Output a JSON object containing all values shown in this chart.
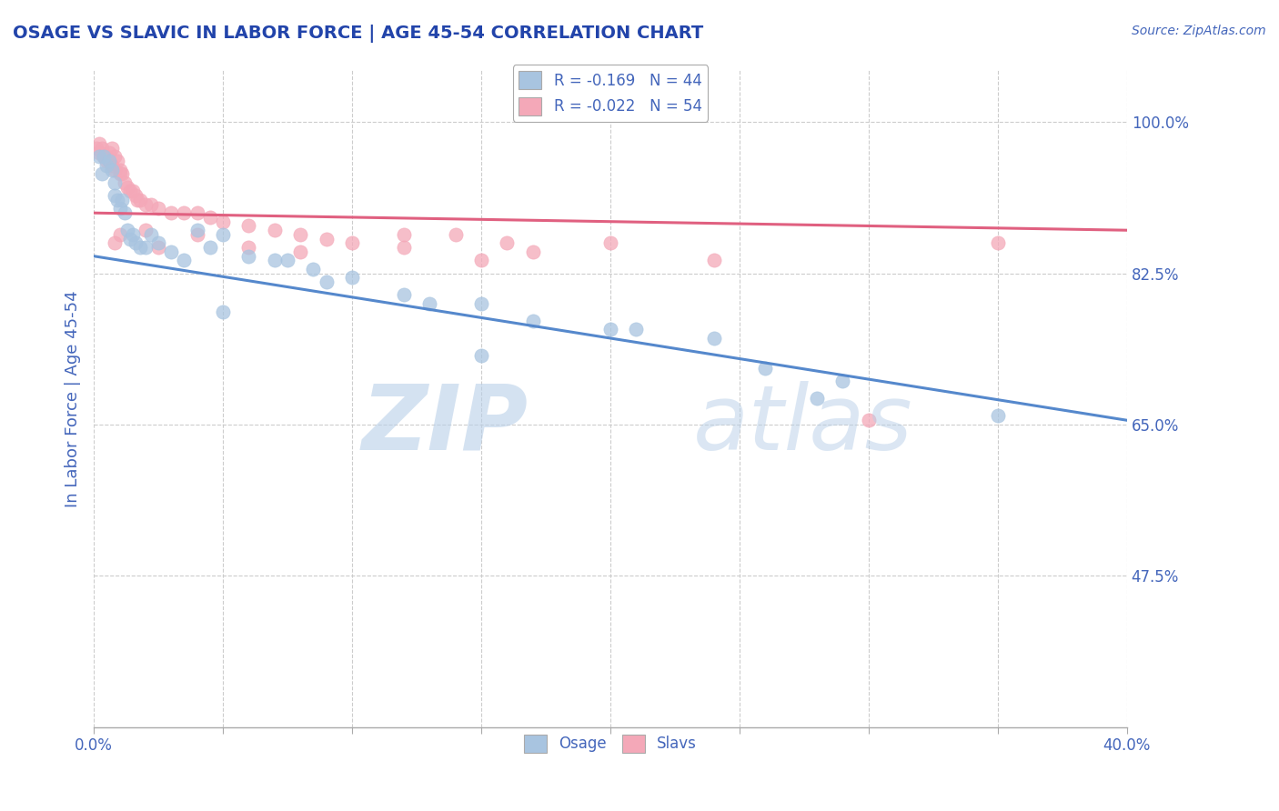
{
  "title": "OSAGE VS SLAVIC IN LABOR FORCE | AGE 45-54 CORRELATION CHART",
  "ylabel": "In Labor Force | Age 45-54",
  "source_text": "Source: ZipAtlas.com",
  "xlim": [
    0.0,
    0.4
  ],
  "ylim": [
    0.3,
    1.06
  ],
  "xticks": [
    0.0,
    0.05,
    0.1,
    0.15,
    0.2,
    0.25,
    0.3,
    0.35,
    0.4
  ],
  "ytick_right": [
    1.0,
    0.825,
    0.65,
    0.475
  ],
  "ytick_right_labels": [
    "100.0%",
    "82.5%",
    "65.0%",
    "47.5%"
  ],
  "legend_blue_r_val": "-0.169",
  "legend_blue_n_val": "44",
  "legend_pink_r_val": "-0.022",
  "legend_pink_n_val": "54",
  "blue_color": "#a8c4e0",
  "pink_color": "#f4a8b8",
  "blue_line_color": "#5588cc",
  "pink_line_color": "#e06080",
  "text_color": "#4466bb",
  "title_color": "#2244aa",
  "background_color": "#ffffff",
  "grid_color": "#cccccc",
  "osage_x": [
    0.002,
    0.003,
    0.004,
    0.005,
    0.006,
    0.007,
    0.008,
    0.008,
    0.009,
    0.01,
    0.011,
    0.012,
    0.013,
    0.014,
    0.015,
    0.016,
    0.018,
    0.02,
    0.022,
    0.025,
    0.03,
    0.035,
    0.04,
    0.045,
    0.05,
    0.06,
    0.07,
    0.075,
    0.085,
    0.09,
    0.1,
    0.12,
    0.13,
    0.15,
    0.17,
    0.2,
    0.21,
    0.24,
    0.26,
    0.29,
    0.05,
    0.15,
    0.28,
    0.35
  ],
  "osage_y": [
    0.96,
    0.94,
    0.96,
    0.95,
    0.955,
    0.945,
    0.93,
    0.915,
    0.91,
    0.9,
    0.91,
    0.895,
    0.875,
    0.865,
    0.87,
    0.86,
    0.855,
    0.855,
    0.87,
    0.86,
    0.85,
    0.84,
    0.875,
    0.855,
    0.87,
    0.845,
    0.84,
    0.84,
    0.83,
    0.815,
    0.82,
    0.8,
    0.79,
    0.79,
    0.77,
    0.76,
    0.76,
    0.75,
    0.715,
    0.7,
    0.78,
    0.73,
    0.68,
    0.66
  ],
  "slavs_x": [
    0.001,
    0.002,
    0.002,
    0.003,
    0.004,
    0.005,
    0.005,
    0.006,
    0.006,
    0.007,
    0.007,
    0.008,
    0.008,
    0.009,
    0.01,
    0.01,
    0.011,
    0.012,
    0.013,
    0.014,
    0.015,
    0.016,
    0.017,
    0.018,
    0.02,
    0.022,
    0.025,
    0.03,
    0.035,
    0.04,
    0.045,
    0.05,
    0.06,
    0.07,
    0.08,
    0.09,
    0.1,
    0.12,
    0.14,
    0.16,
    0.025,
    0.08,
    0.15,
    0.17,
    0.2,
    0.24,
    0.12,
    0.06,
    0.04,
    0.02,
    0.01,
    0.008,
    0.35,
    0.3
  ],
  "slavs_y": [
    0.97,
    0.975,
    0.965,
    0.97,
    0.96,
    0.96,
    0.955,
    0.965,
    0.955,
    0.97,
    0.95,
    0.96,
    0.945,
    0.955,
    0.945,
    0.94,
    0.94,
    0.93,
    0.925,
    0.92,
    0.92,
    0.915,
    0.91,
    0.91,
    0.905,
    0.905,
    0.9,
    0.895,
    0.895,
    0.895,
    0.89,
    0.885,
    0.88,
    0.875,
    0.87,
    0.865,
    0.86,
    0.855,
    0.87,
    0.86,
    0.855,
    0.85,
    0.84,
    0.85,
    0.86,
    0.84,
    0.87,
    0.855,
    0.87,
    0.875,
    0.87,
    0.86,
    0.86,
    0.655
  ],
  "osage_trendline_x": [
    0.0,
    0.4
  ],
  "osage_trendline_y": [
    0.845,
    0.655
  ],
  "slavs_trendline_x": [
    0.0,
    0.4
  ],
  "slavs_trendline_y": [
    0.895,
    0.875
  ]
}
